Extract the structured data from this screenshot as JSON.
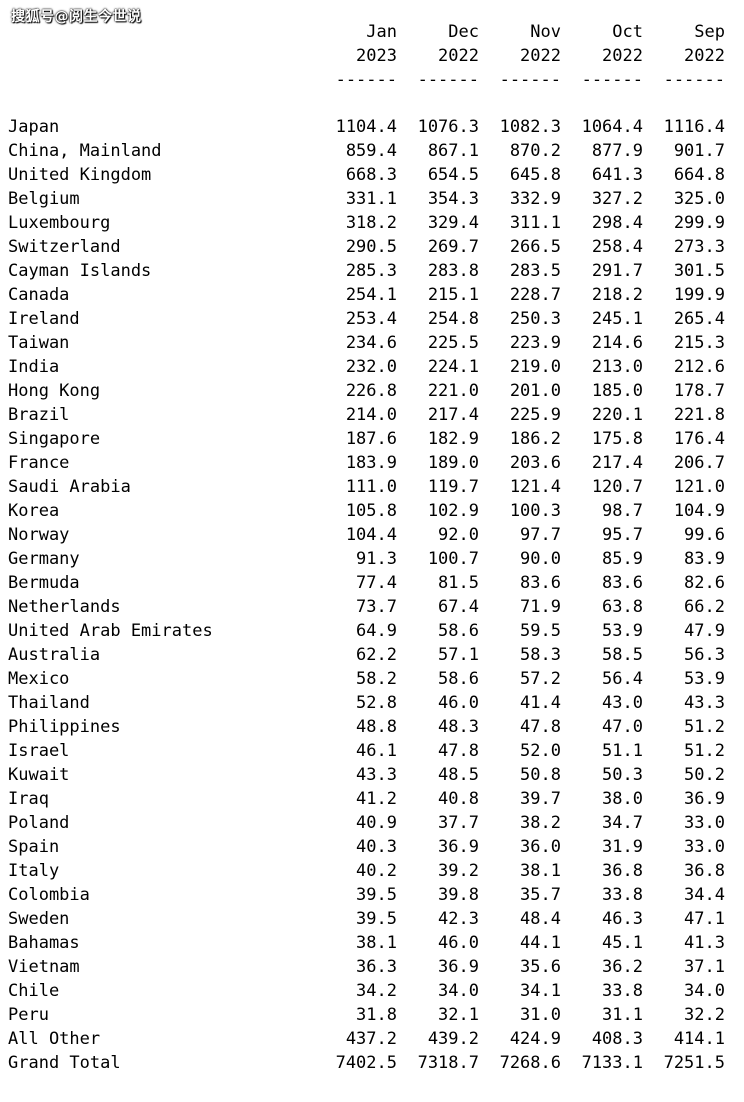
{
  "watermark": "搜狐号@阅生今世说",
  "columns": [
    {
      "month": "Jan",
      "year": "2023",
      "rule": "------"
    },
    {
      "month": "Dec",
      "year": "2022",
      "rule": "------"
    },
    {
      "month": "Nov",
      "year": "2022",
      "rule": "------"
    },
    {
      "month": "Oct",
      "year": "2022",
      "rule": "------"
    },
    {
      "month": "Sep",
      "year": "2022",
      "rule": "------"
    }
  ],
  "rows": [
    {
      "name": "Japan",
      "values": [
        "1104.4",
        "1076.3",
        "1082.3",
        "1064.4",
        "1116.4"
      ]
    },
    {
      "name": "China, Mainland",
      "values": [
        "859.4",
        "867.1",
        "870.2",
        "877.9",
        "901.7"
      ]
    },
    {
      "name": "United Kingdom",
      "values": [
        "668.3",
        "654.5",
        "645.8",
        "641.3",
        "664.8"
      ]
    },
    {
      "name": "Belgium",
      "values": [
        "331.1",
        "354.3",
        "332.9",
        "327.2",
        "325.0"
      ]
    },
    {
      "name": "Luxembourg",
      "values": [
        "318.2",
        "329.4",
        "311.1",
        "298.4",
        "299.9"
      ]
    },
    {
      "name": "Switzerland",
      "values": [
        "290.5",
        "269.7",
        "266.5",
        "258.4",
        "273.3"
      ]
    },
    {
      "name": "Cayman Islands",
      "values": [
        "285.3",
        "283.8",
        "283.5",
        "291.7",
        "301.5"
      ]
    },
    {
      "name": "Canada",
      "values": [
        "254.1",
        "215.1",
        "228.7",
        "218.2",
        "199.9"
      ]
    },
    {
      "name": "Ireland",
      "values": [
        "253.4",
        "254.8",
        "250.3",
        "245.1",
        "265.4"
      ]
    },
    {
      "name": "Taiwan",
      "values": [
        "234.6",
        "225.5",
        "223.9",
        "214.6",
        "215.3"
      ]
    },
    {
      "name": "India",
      "values": [
        "232.0",
        "224.1",
        "219.0",
        "213.0",
        "212.6"
      ]
    },
    {
      "name": "Hong Kong",
      "values": [
        "226.8",
        "221.0",
        "201.0",
        "185.0",
        "178.7"
      ]
    },
    {
      "name": "Brazil",
      "values": [
        "214.0",
        "217.4",
        "225.9",
        "220.1",
        "221.8"
      ]
    },
    {
      "name": "Singapore",
      "values": [
        "187.6",
        "182.9",
        "186.2",
        "175.8",
        "176.4"
      ]
    },
    {
      "name": "France",
      "values": [
        "183.9",
        "189.0",
        "203.6",
        "217.4",
        "206.7"
      ]
    },
    {
      "name": "Saudi Arabia",
      "values": [
        "111.0",
        "119.7",
        "121.4",
        "120.7",
        "121.0"
      ]
    },
    {
      "name": "Korea",
      "values": [
        "105.8",
        "102.9",
        "100.3",
        "98.7",
        "104.9"
      ]
    },
    {
      "name": "Norway",
      "values": [
        "104.4",
        "92.0",
        "97.7",
        "95.7",
        "99.6"
      ]
    },
    {
      "name": "Germany",
      "values": [
        "91.3",
        "100.7",
        "90.0",
        "85.9",
        "83.9"
      ]
    },
    {
      "name": "Bermuda",
      "values": [
        "77.4",
        "81.5",
        "83.6",
        "83.6",
        "82.6"
      ]
    },
    {
      "name": "Netherlands",
      "values": [
        "73.7",
        "67.4",
        "71.9",
        "63.8",
        "66.2"
      ]
    },
    {
      "name": "United Arab Emirates",
      "values": [
        "64.9",
        "58.6",
        "59.5",
        "53.9",
        "47.9"
      ]
    },
    {
      "name": "Australia",
      "values": [
        "62.2",
        "57.1",
        "58.3",
        "58.5",
        "56.3"
      ]
    },
    {
      "name": "Mexico",
      "values": [
        "58.2",
        "58.6",
        "57.2",
        "56.4",
        "53.9"
      ]
    },
    {
      "name": "Thailand",
      "values": [
        "52.8",
        "46.0",
        "41.4",
        "43.0",
        "43.3"
      ]
    },
    {
      "name": "Philippines",
      "values": [
        "48.8",
        "48.3",
        "47.8",
        "47.0",
        "51.2"
      ]
    },
    {
      "name": "Israel",
      "values": [
        "46.1",
        "47.8",
        "52.0",
        "51.1",
        "51.2"
      ]
    },
    {
      "name": "Kuwait",
      "values": [
        "43.3",
        "48.5",
        "50.8",
        "50.3",
        "50.2"
      ]
    },
    {
      "name": "Iraq",
      "values": [
        "41.2",
        "40.8",
        "39.7",
        "38.0",
        "36.9"
      ]
    },
    {
      "name": "Poland",
      "values": [
        "40.9",
        "37.7",
        "38.2",
        "34.7",
        "33.0"
      ]
    },
    {
      "name": "Spain",
      "values": [
        "40.3",
        "36.9",
        "36.0",
        "31.9",
        "33.0"
      ]
    },
    {
      "name": "Italy",
      "values": [
        "40.2",
        "39.2",
        "38.1",
        "36.8",
        "36.8"
      ]
    },
    {
      "name": "Colombia",
      "values": [
        "39.5",
        "39.8",
        "35.7",
        "33.8",
        "34.4"
      ]
    },
    {
      "name": "Sweden",
      "values": [
        "39.5",
        "42.3",
        "48.4",
        "46.3",
        "47.1"
      ]
    },
    {
      "name": "Bahamas",
      "values": [
        "38.1",
        "46.0",
        "44.1",
        "45.1",
        "41.3"
      ]
    },
    {
      "name": "Vietnam",
      "values": [
        "36.3",
        "36.9",
        "35.6",
        "36.2",
        "37.1"
      ]
    },
    {
      "name": "Chile",
      "values": [
        "34.2",
        "34.0",
        "34.1",
        "33.8",
        "34.0"
      ]
    },
    {
      "name": "Peru",
      "values": [
        "31.8",
        "32.1",
        "31.0",
        "31.1",
        "32.2"
      ]
    },
    {
      "name": "All Other",
      "values": [
        "437.2",
        "439.2",
        "424.9",
        "408.3",
        "414.1"
      ]
    },
    {
      "name": "Grand Total",
      "values": [
        "7402.5",
        "7318.7",
        "7268.6",
        "7133.1",
        "7251.5"
      ]
    }
  ]
}
